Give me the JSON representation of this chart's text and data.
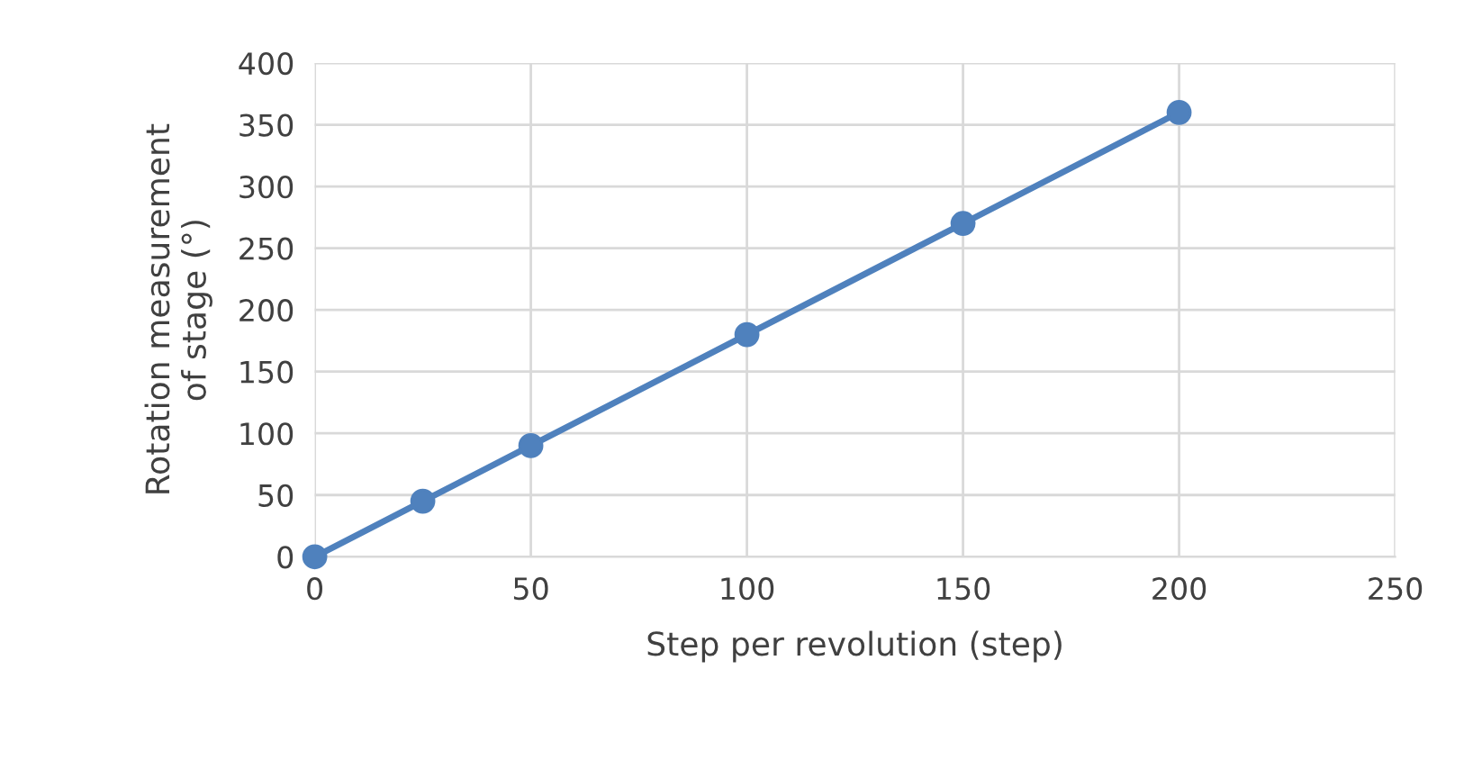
{
  "chart_data": {
    "type": "line",
    "xlabel": "Step per revolution (step)",
    "ylabel": "Rotation measurement of stage (°)",
    "x": [
      0,
      25,
      50,
      100,
      150,
      200
    ],
    "series": [
      {
        "color": "#4f81bd",
        "values": [
          0,
          45,
          90,
          180,
          270,
          360
        ]
      }
    ],
    "xlim": [
      0,
      250
    ],
    "xticks": [
      0,
      50,
      100,
      150,
      200,
      250
    ],
    "ylim": [
      0,
      400
    ],
    "yticks": [
      0,
      50,
      100,
      150,
      200,
      250,
      300,
      350,
      400
    ],
    "grid": true,
    "marker": "circle",
    "line_style": "solid"
  }
}
